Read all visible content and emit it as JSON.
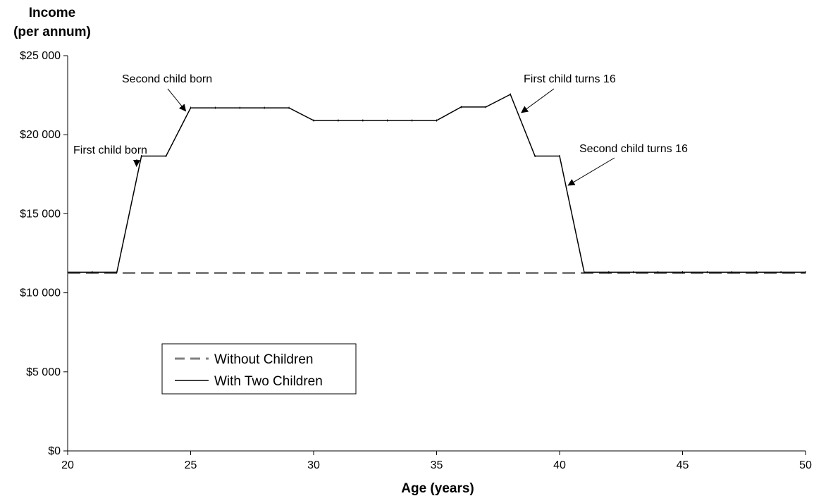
{
  "chart_data": {
    "type": "line",
    "ylabel_line1": "Income",
    "ylabel_line2": "(per annum)",
    "xlabel": "Age (years)",
    "xlim": [
      20,
      50
    ],
    "ylim": [
      0,
      25000
    ],
    "xticks": [
      20,
      25,
      30,
      35,
      40,
      45,
      50
    ],
    "xtick_labels": [
      "20",
      "25",
      "30",
      "35",
      "40",
      "45",
      "50"
    ],
    "yticks": [
      0,
      5000,
      10000,
      15000,
      20000,
      25000
    ],
    "ytick_labels": [
      "$0",
      "$5 000",
      "$10 000",
      "$15 000",
      "$20 000",
      "$25 000"
    ],
    "grid": false,
    "legend_position": "lower-left",
    "series": [
      {
        "name": "Without Children",
        "style": "dashed",
        "color": "#808080",
        "x": [
          20,
          50
        ],
        "y": [
          11250,
          11250
        ]
      },
      {
        "name": "With Two Children",
        "style": "solid",
        "color": "#000000",
        "x": [
          20,
          21,
          22,
          23,
          24,
          25,
          26,
          27,
          28,
          29,
          30,
          31,
          32,
          33,
          34,
          35,
          36,
          37,
          38,
          39,
          40,
          41,
          42,
          43,
          44,
          45,
          46,
          47,
          48,
          49,
          50
        ],
        "y": [
          11300,
          11300,
          11300,
          18650,
          18650,
          21700,
          21700,
          21700,
          21700,
          21700,
          20900,
          20900,
          20900,
          20900,
          20900,
          20900,
          21750,
          21750,
          22550,
          18650,
          18650,
          11300,
          11300,
          11300,
          11300,
          11300,
          11300,
          11300,
          11300,
          11300,
          11300
        ]
      }
    ],
    "annotations": [
      {
        "text": "First child born",
        "arrow_to": [
          22.8,
          18000
        ]
      },
      {
        "text": "Second child born",
        "arrow_to": [
          24.8,
          21500
        ]
      },
      {
        "text": "First child turns 16",
        "arrow_to": [
          38.45,
          21400
        ]
      },
      {
        "text": "Second child turns 16",
        "arrow_to": [
          40.35,
          16800
        ]
      }
    ]
  }
}
